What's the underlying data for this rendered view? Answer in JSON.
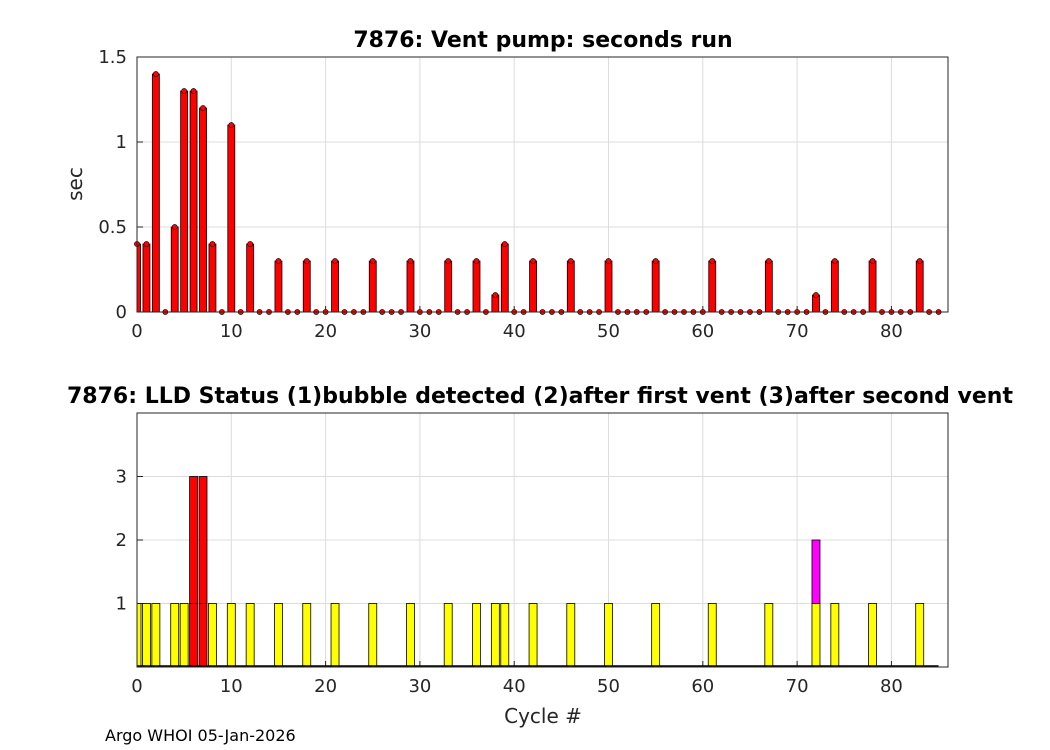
{
  "footer": "Argo WHOI 05-Jan-2026",
  "colors": {
    "primary": "#ff0000",
    "status1": "#ffff00",
    "status2": "#ff00ff",
    "status3": "#ff0000",
    "grid": "#dcdcdc",
    "axis": "#262626"
  },
  "chart_data": [
    {
      "type": "bar",
      "title": "7876: Vent pump: seconds run",
      "xlabel": "",
      "ylabel": "sec",
      "xlim": [
        0,
        86
      ],
      "ylim": [
        0,
        1.5
      ],
      "xticks": [
        0,
        10,
        20,
        30,
        40,
        50,
        60,
        70,
        80
      ],
      "yticks": [
        0,
        0.5,
        1,
        1.5
      ],
      "ytick_labels": [
        "0",
        "0.5",
        "1",
        "1.5"
      ],
      "grid": true,
      "series": [
        {
          "x": [
            0,
            1,
            2,
            3,
            4,
            5,
            6,
            7,
            8,
            9,
            10,
            11,
            12,
            13,
            14,
            15,
            16,
            17,
            18,
            19,
            20,
            21,
            22,
            23,
            24,
            25,
            26,
            27,
            28,
            29,
            30,
            31,
            32,
            33,
            34,
            35,
            36,
            37,
            38,
            39,
            40,
            41,
            42,
            43,
            44,
            45,
            46,
            47,
            48,
            49,
            50,
            51,
            52,
            53,
            54,
            55,
            56,
            57,
            58,
            59,
            60,
            61,
            62,
            63,
            64,
            65,
            66,
            67,
            68,
            69,
            70,
            71,
            72,
            73,
            74,
            75,
            76,
            77,
            78,
            79,
            80,
            81,
            82,
            83,
            84,
            85
          ],
          "values": [
            0.4,
            0.4,
            1.4,
            0,
            0.5,
            1.3,
            1.3,
            1.2,
            0.4,
            0,
            1.1,
            0,
            0.4,
            0,
            0,
            0.3,
            0,
            0,
            0.3,
            0,
            0,
            0.3,
            0,
            0,
            0,
            0.3,
            0,
            0,
            0,
            0.3,
            0,
            0,
            0,
            0.3,
            0,
            0,
            0.3,
            0,
            0.1,
            0.4,
            0,
            0,
            0.3,
            0,
            0,
            0,
            0.3,
            0,
            0,
            0,
            0.3,
            0,
            0,
            0,
            0,
            0.3,
            0,
            0,
            0,
            0,
            0,
            0.3,
            0,
            0,
            0,
            0,
            0,
            0.3,
            0,
            0,
            0,
            0,
            0.1,
            0,
            0.3,
            0,
            0,
            0,
            0.3,
            0,
            0,
            0,
            0,
            0.3,
            0,
            0
          ]
        }
      ]
    },
    {
      "type": "bar",
      "title": "7876: LLD Status   (1)bubble detected   (2)after first vent  (3)after second vent",
      "xlabel": "Cycle #",
      "ylabel": "",
      "xlim": [
        0,
        86
      ],
      "ylim": [
        0,
        4
      ],
      "xticks": [
        0,
        10,
        20,
        30,
        40,
        50,
        60,
        70,
        80
      ],
      "yticks": [
        1,
        2,
        3
      ],
      "grid": true,
      "series": [
        {
          "x": [
            0,
            1,
            2,
            4,
            5,
            6,
            7,
            8,
            10,
            12,
            15,
            18,
            21,
            25,
            29,
            33,
            36,
            38,
            39,
            42,
            46,
            50,
            55,
            61,
            67,
            72,
            74,
            78,
            83
          ],
          "values": [
            1,
            1,
            1,
            1,
            1,
            3,
            3,
            1,
            1,
            1,
            1,
            1,
            1,
            1,
            1,
            1,
            1,
            1,
            1,
            1,
            1,
            1,
            1,
            1,
            1,
            2,
            1,
            1,
            1
          ]
        }
      ]
    }
  ]
}
